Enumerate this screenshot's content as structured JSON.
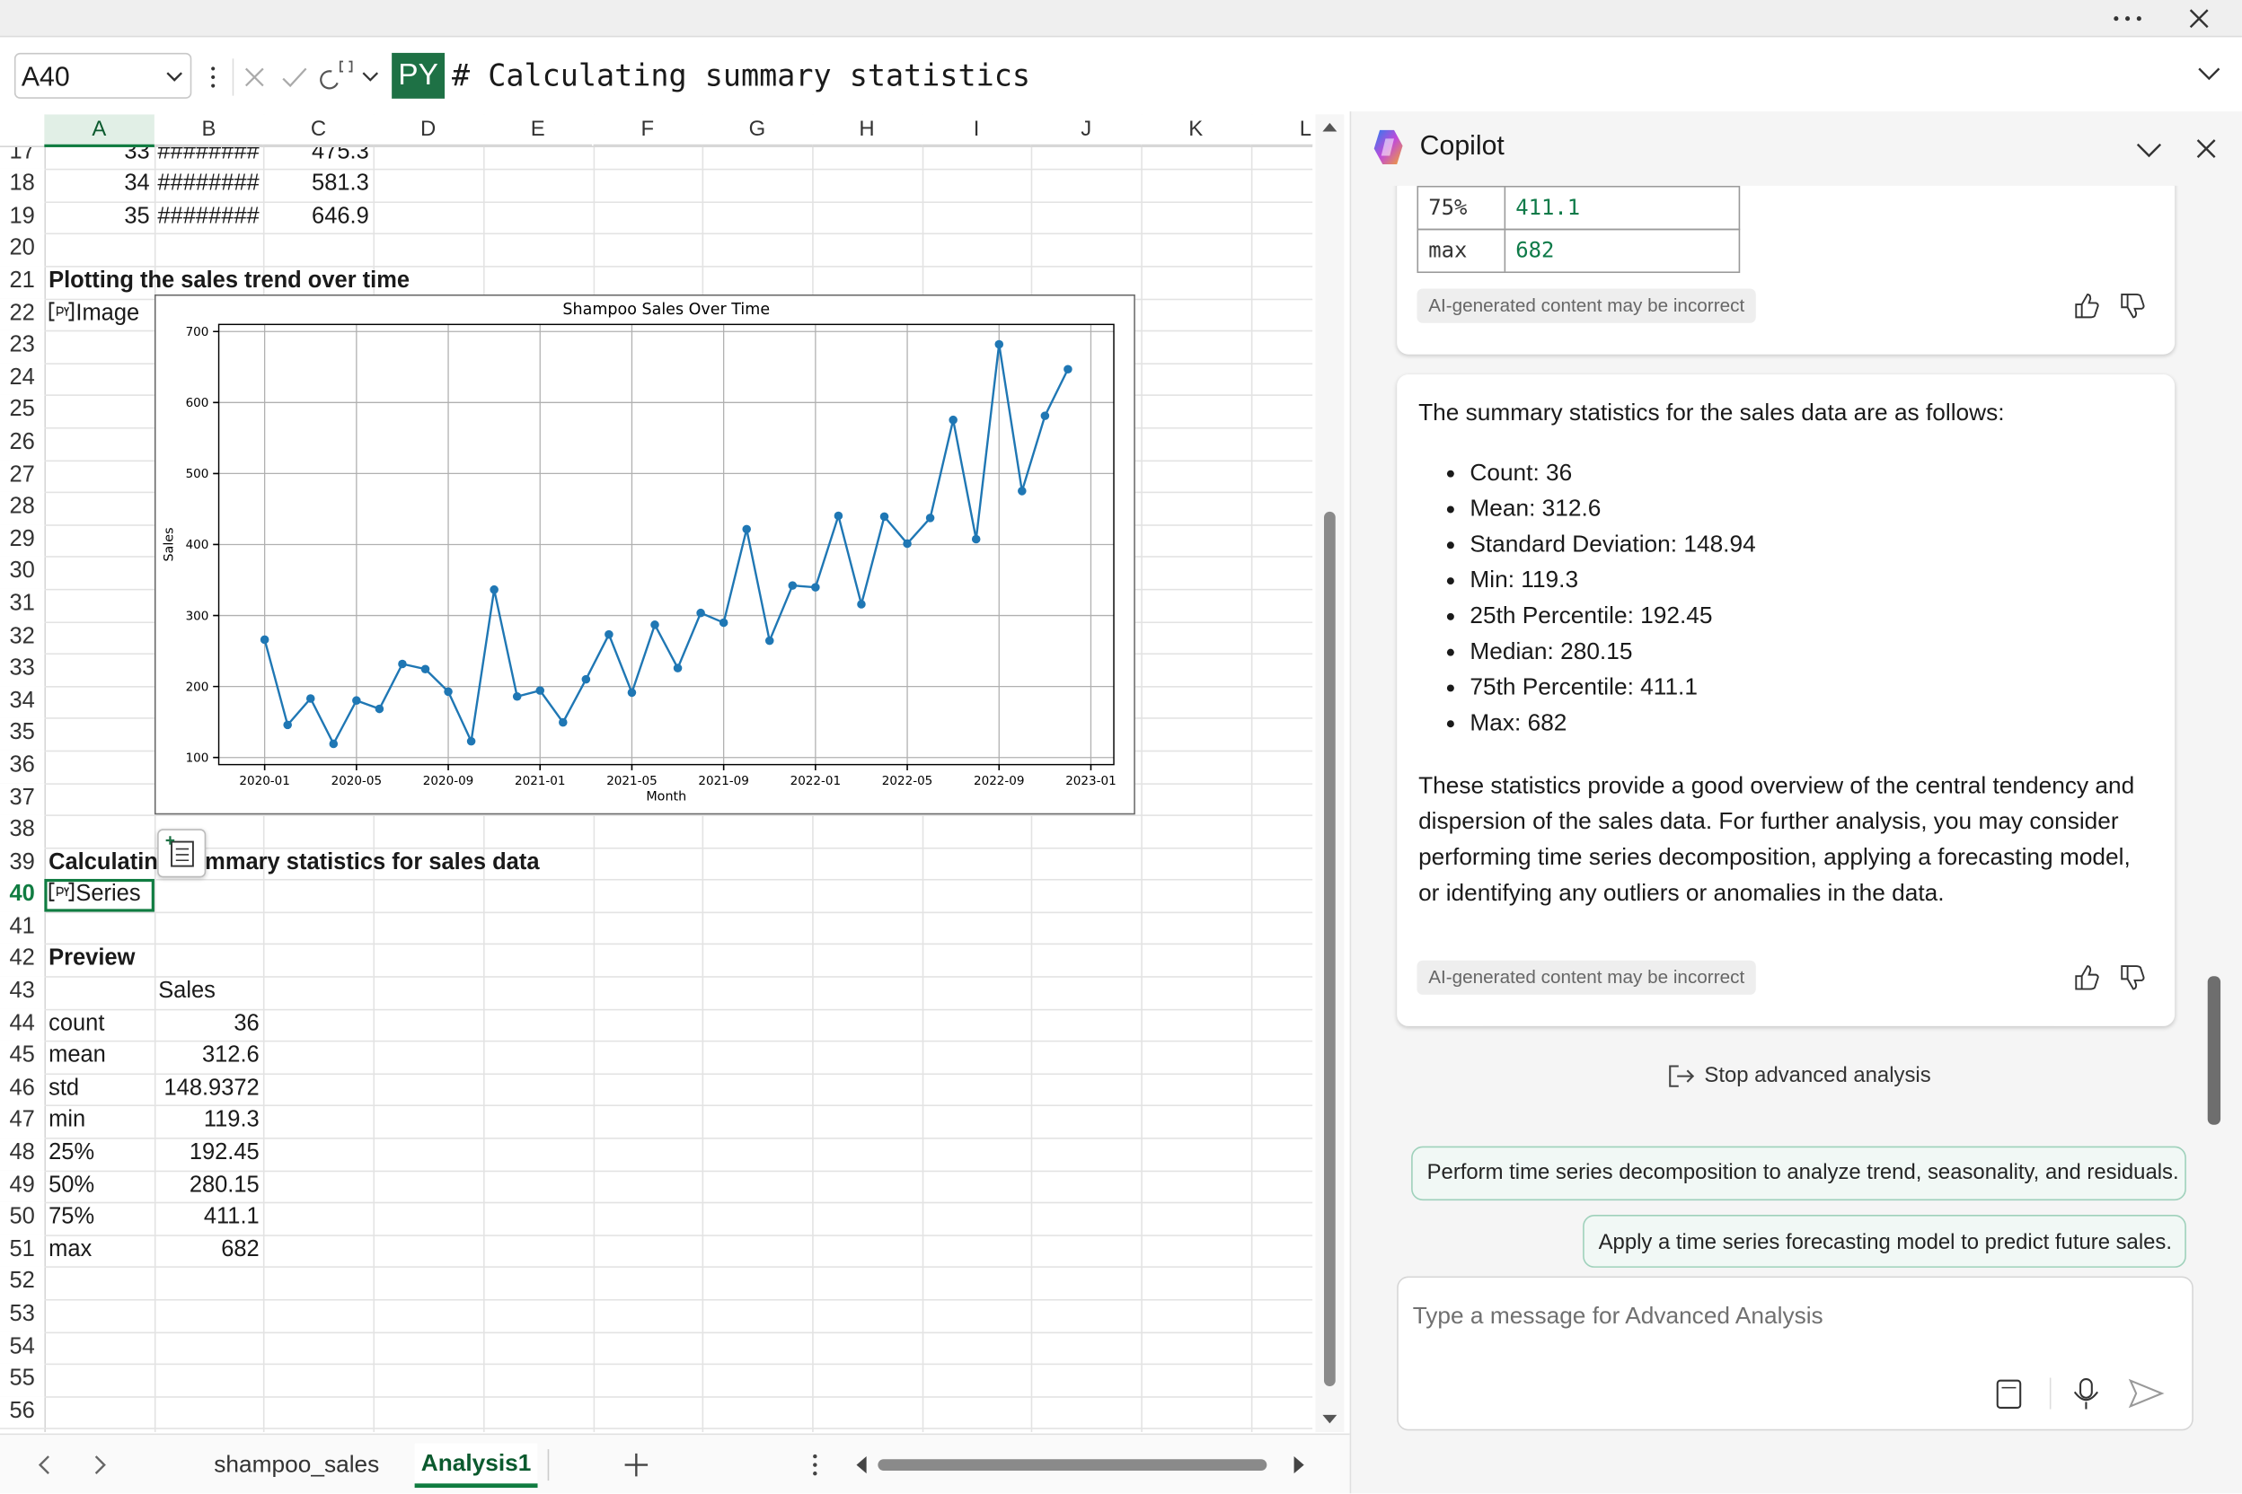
{
  "formula_bar": {
    "name_box": "A40",
    "python_badge": "PY",
    "formula": "# Calculating summary statistics"
  },
  "columns": [
    "A",
    "B",
    "C",
    "D",
    "E",
    "F",
    "G",
    "H",
    "I",
    "J",
    "K",
    "L"
  ],
  "rows": [
    {
      "label": "17",
      "cells": {
        "A": "33",
        "B": "########",
        "C": "475.3"
      }
    },
    {
      "label": "18",
      "cells": {
        "A": "34",
        "B": "########",
        "C": "581.3"
      }
    },
    {
      "label": "19",
      "cells": {
        "A": "35",
        "B": "########",
        "C": "646.9"
      }
    },
    {
      "label": "20"
    },
    {
      "label": "21",
      "cells": {
        "A": "Plotting the sales trend over time"
      },
      "bold": true
    },
    {
      "label": "22",
      "cells": {
        "A": "Image"
      },
      "python": true
    },
    {
      "label": "23"
    },
    {
      "label": "24"
    },
    {
      "label": "25"
    },
    {
      "label": "26"
    },
    {
      "label": "27"
    },
    {
      "label": "28"
    },
    {
      "label": "29"
    },
    {
      "label": "30"
    },
    {
      "label": "31"
    },
    {
      "label": "32"
    },
    {
      "label": "33"
    },
    {
      "label": "34"
    },
    {
      "label": "35"
    },
    {
      "label": "36"
    },
    {
      "label": "37"
    },
    {
      "label": "38"
    },
    {
      "label": "39",
      "cells": {
        "A": "Calculating summary statistics for sales data"
      },
      "bold": true
    },
    {
      "label": "40",
      "cells": {
        "A": "Series"
      },
      "python": true,
      "selected": "A"
    },
    {
      "label": "41"
    },
    {
      "label": "42",
      "cells": {
        "A": "Preview"
      },
      "bold": true
    },
    {
      "label": "43",
      "cells": {
        "B": "Sales"
      }
    },
    {
      "label": "44",
      "cells": {
        "A": "count",
        "B": "36"
      }
    },
    {
      "label": "45",
      "cells": {
        "A": "mean",
        "B": "312.6"
      }
    },
    {
      "label": "46",
      "cells": {
        "A": "std",
        "B": "148.9372"
      }
    },
    {
      "label": "47",
      "cells": {
        "A": "min",
        "B": "119.3"
      }
    },
    {
      "label": "48",
      "cells": {
        "A": "25%",
        "B": "192.45"
      }
    },
    {
      "label": "49",
      "cells": {
        "A": "50%",
        "B": "280.15"
      }
    },
    {
      "label": "50",
      "cells": {
        "A": "75%",
        "B": "411.1"
      }
    },
    {
      "label": "51",
      "cells": {
        "A": "max",
        "B": "682"
      }
    },
    {
      "label": "52"
    },
    {
      "label": "53"
    },
    {
      "label": "54"
    },
    {
      "label": "55"
    },
    {
      "label": "56"
    }
  ],
  "chart_data": {
    "type": "line",
    "title": "Shampoo Sales Over Time",
    "x_label": "Month",
    "y_label": "Sales",
    "x": [
      "2020-01",
      "2020-02",
      "2020-03",
      "2020-04",
      "2020-05",
      "2020-06",
      "2020-07",
      "2020-08",
      "2020-09",
      "2020-10",
      "2020-11",
      "2020-12",
      "2021-01",
      "2021-02",
      "2021-03",
      "2021-04",
      "2021-05",
      "2021-06",
      "2021-07",
      "2021-08",
      "2021-09",
      "2021-10",
      "2021-11",
      "2021-12",
      "2022-01",
      "2022-02",
      "2022-03",
      "2022-04",
      "2022-05",
      "2022-06",
      "2022-07",
      "2022-08",
      "2022-09",
      "2022-10",
      "2022-11",
      "2022-12"
    ],
    "values": [
      266.0,
      145.9,
      183.1,
      119.3,
      180.3,
      168.5,
      231.8,
      224.5,
      192.8,
      122.9,
      336.5,
      185.9,
      194.3,
      149.5,
      210.1,
      273.3,
      191.4,
      287.0,
      226.0,
      303.6,
      289.9,
      421.6,
      264.5,
      342.3,
      339.7,
      440.4,
      315.9,
      439.3,
      401.3,
      437.4,
      575.5,
      407.6,
      682.0,
      475.3,
      581.3,
      646.9
    ],
    "color": "#1f77b4",
    "markers": true,
    "grid": true,
    "xlim": [
      "2019-11",
      "2023-02"
    ],
    "xticks": [
      "2020-01",
      "2020-05",
      "2020-09",
      "2021-01",
      "2021-05",
      "2021-09",
      "2022-01",
      "2022-05",
      "2022-09",
      "2023-01"
    ],
    "ylim": [
      90,
      710
    ],
    "yticks": [
      100,
      200,
      300,
      400,
      500,
      600,
      700
    ]
  },
  "sheet_tabs": {
    "tabs": [
      "shampoo_sales",
      "Analysis1"
    ],
    "active": 1
  },
  "copilot": {
    "title": "Copilot",
    "table_rows": [
      [
        "75%",
        "411.1"
      ],
      [
        "max",
        "682"
      ]
    ],
    "disclaimer": "AI-generated content may be incorrect",
    "message_intro": "The summary statistics for the sales data are as follows:",
    "bullets": [
      "Count: 36",
      "Mean: 312.6",
      "Standard Deviation: 148.94",
      "Min: 119.3",
      "25th Percentile: 192.45",
      "Median: 280.15",
      "75th Percentile: 411.1",
      "Max: 682"
    ],
    "message_outro": "These statistics provide a good overview of the central tendency and dispersion of the sales data. For further analysis, you may consider performing time series decomposition, applying a forecasting model, or identifying any outliers or anomalies in the data.",
    "stop_analysis": "Stop advanced analysis",
    "suggestions": [
      "Perform time series decomposition to analyze trend, seasonality, and residuals.",
      "Apply a time series forecasting model to predict future sales."
    ],
    "input_placeholder": "Type a message for Advanced Analysis"
  }
}
